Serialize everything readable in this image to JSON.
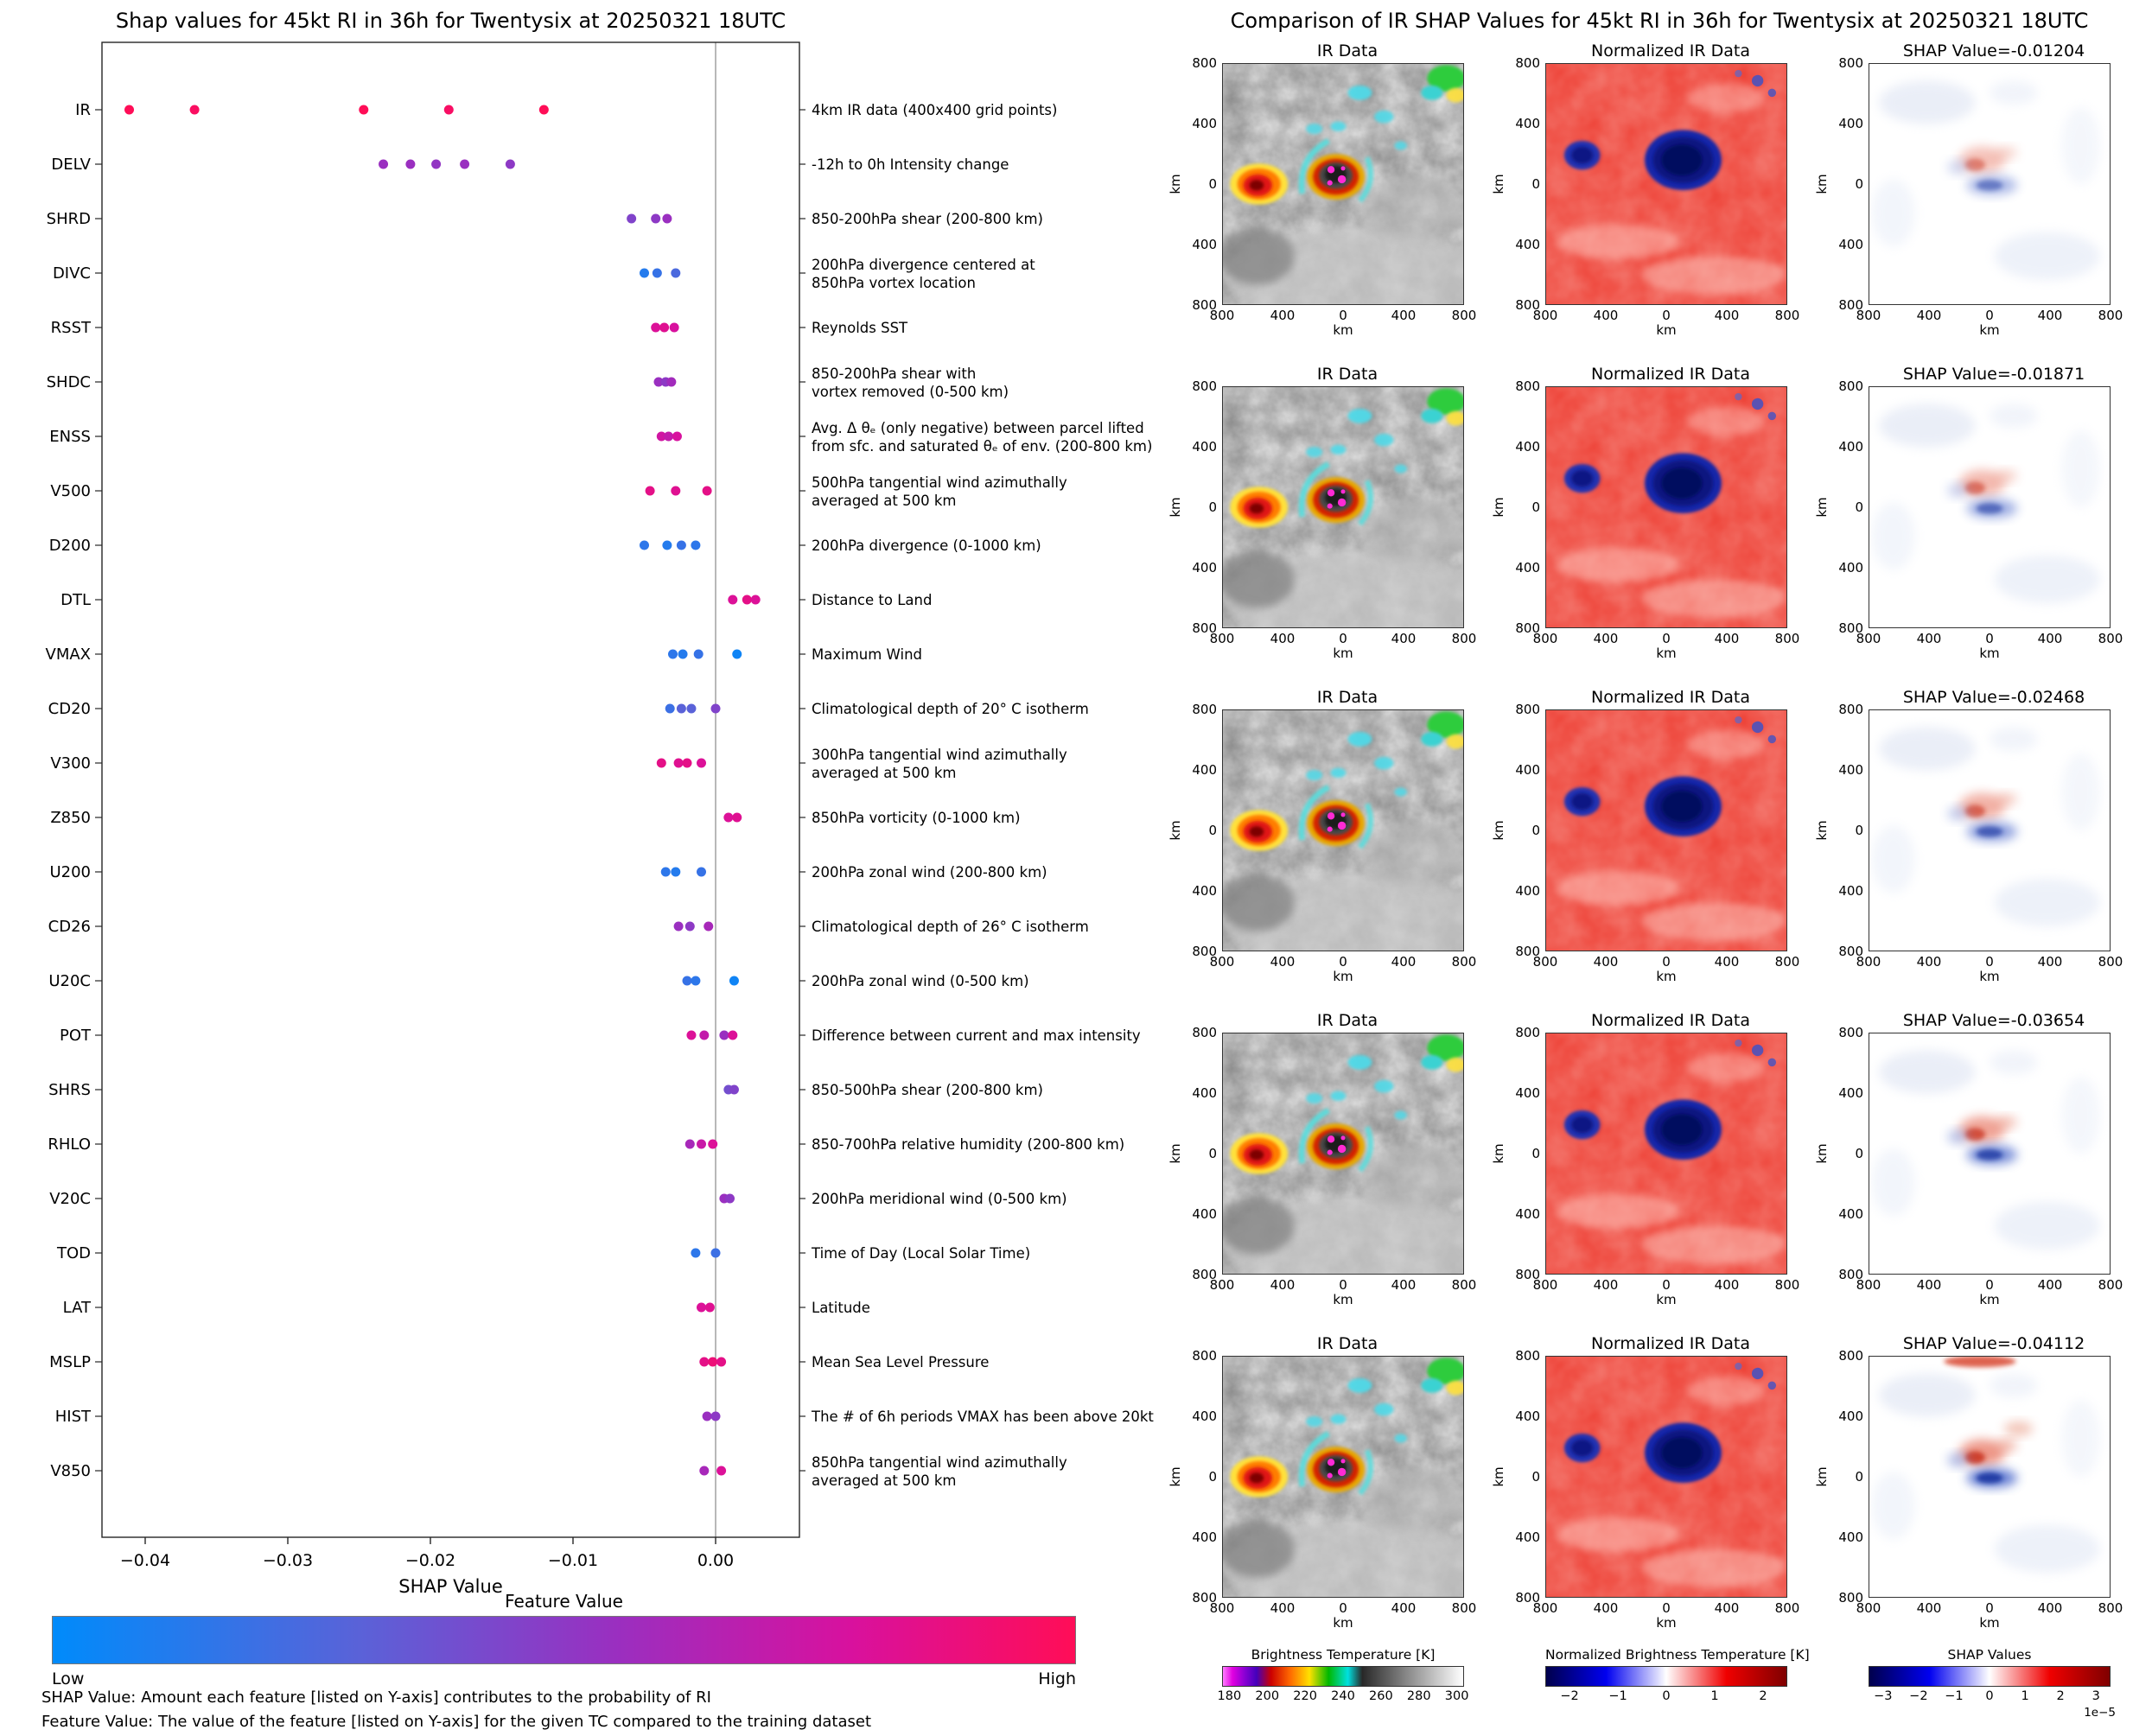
{
  "palette": {
    "feature_cmap_stops": [
      [
        0,
        "#008bfb"
      ],
      [
        0.3,
        "#5a62d8"
      ],
      [
        0.55,
        "#9a2fc0"
      ],
      [
        0.78,
        "#d8119e"
      ],
      [
        1,
        "#ff0d57"
      ]
    ],
    "seismic_stops": [
      [
        0,
        "#00004c"
      ],
      [
        25,
        "#0000f0"
      ],
      [
        50,
        "#ffffff"
      ],
      [
        75,
        "#f00000"
      ],
      [
        100,
        "#7f0000"
      ]
    ],
    "ir_bar_stops": [
      [
        0,
        "#ff7dff"
      ],
      [
        4,
        "#e000e0"
      ],
      [
        9,
        "#8a00d4"
      ],
      [
        14,
        "#4400bb"
      ],
      [
        20,
        "#cc0000"
      ],
      [
        28,
        "#ff6a00"
      ],
      [
        36,
        "#ffe100"
      ],
      [
        44,
        "#00b800"
      ],
      [
        52,
        "#00e0e0"
      ],
      [
        58,
        "#282828"
      ],
      [
        80,
        "#9a9a9a"
      ],
      [
        100,
        "#ffffff"
      ]
    ],
    "zero_line": "#888888",
    "axis": "#262626"
  },
  "left_panel": {
    "colorbar_title": "Feature Value",
    "colorbar_low": "Low",
    "colorbar_high": "High",
    "footnote_shap": "SHAP Value: Amount each feature [listed on Y-axis] contributes to the probability of RI",
    "footnote_feature": "Feature Value: The value of the feature [listed on Y-axis] for the given TC compared to the training dataset"
  },
  "chart_data": [
    {
      "type": "scatter",
      "variant": "shap-beeswarm",
      "title": "Shap values for 45kt RI in 36h for Twentysix at 20250321 18UTC",
      "xlabel": "SHAP Value",
      "xlim": [
        -0.0445,
        0.0059
      ],
      "x_ticks": [
        {
          "v": -0.04,
          "label": "−0.04"
        },
        {
          "v": -0.03,
          "label": "−0.03"
        },
        {
          "v": -0.02,
          "label": "−0.02"
        },
        {
          "v": -0.01,
          "label": "−0.01"
        },
        {
          "v": 0,
          "label": "0.00"
        }
      ],
      "color_meaning": {
        "low": "#008bfb",
        "high": "#ff0d57"
      },
      "features": [
        {
          "name": "IR",
          "desc": [
            "4km IR data (400x400 grid points)"
          ],
          "points": [
            [
              -0.04112,
              1
            ],
            [
              -0.03654,
              0.97
            ],
            [
              -0.02468,
              1
            ],
            [
              -0.01871,
              0.96
            ],
            [
              -0.01204,
              1
            ]
          ]
        },
        {
          "name": "DELV",
          "desc": [
            "-12h to 0h Intensity change"
          ],
          "points": [
            [
              -0.0233,
              0.55
            ],
            [
              -0.0214,
              0.55
            ],
            [
              -0.0196,
              0.52
            ],
            [
              -0.0176,
              0.55
            ],
            [
              -0.0144,
              0.5
            ]
          ]
        },
        {
          "name": "SHRD",
          "desc": [
            "850-200hPa shear (200-800 km)"
          ],
          "points": [
            [
              -0.0059,
              0.45
            ],
            [
              -0.0042,
              0.5
            ],
            [
              -0.0034,
              0.55
            ]
          ]
        },
        {
          "name": "DIVC",
          "desc": [
            "200hPa divergence centered at",
            "850hPa vortex location"
          ],
          "points": [
            [
              -0.005,
              0.12
            ],
            [
              -0.0041,
              0.18
            ],
            [
              -0.0028,
              0.25
            ]
          ]
        },
        {
          "name": "RSST",
          "desc": [
            "Reynolds SST"
          ],
          "points": [
            [
              -0.0042,
              0.8
            ],
            [
              -0.0036,
              0.82
            ],
            [
              -0.0029,
              0.78
            ]
          ]
        },
        {
          "name": "SHDC",
          "desc": [
            "850-200hPa shear with",
            "vortex removed (0-500 km)"
          ],
          "points": [
            [
              -0.004,
              0.55
            ],
            [
              -0.0035,
              0.5
            ],
            [
              -0.0031,
              0.58
            ]
          ]
        },
        {
          "name": "ENSS",
          "desc": [
            "Avg. Δ θₑ (only negative) between parcel lifted",
            "from sfc. and saturated θₑ of env. (200-800 km)"
          ],
          "points": [
            [
              -0.0038,
              0.75
            ],
            [
              -0.0033,
              0.7
            ],
            [
              -0.0027,
              0.78
            ]
          ]
        },
        {
          "name": "V500",
          "desc": [
            "500hPa tangential wind azimuthally",
            "averaged at 500 km"
          ],
          "points": [
            [
              -0.0046,
              0.85
            ],
            [
              -0.0028,
              0.82
            ],
            [
              -0.0006,
              0.85
            ]
          ]
        },
        {
          "name": "D200",
          "desc": [
            "200hPa divergence (0-1000 km)"
          ],
          "points": [
            [
              -0.005,
              0.15
            ],
            [
              -0.0034,
              0.12
            ],
            [
              -0.0024,
              0.18
            ],
            [
              -0.0014,
              0.15
            ]
          ]
        },
        {
          "name": "DTL",
          "desc": [
            "Distance to Land"
          ],
          "points": [
            [
              0.0012,
              0.8
            ],
            [
              0.0022,
              0.85
            ],
            [
              0.0028,
              0.8
            ]
          ]
        },
        {
          "name": "VMAX",
          "desc": [
            "Maximum Wind"
          ],
          "points": [
            [
              -0.003,
              0.15
            ],
            [
              -0.0023,
              0.12
            ],
            [
              -0.0012,
              0.18
            ],
            [
              0.0015,
              0.05
            ]
          ]
        },
        {
          "name": "CD20",
          "desc": [
            "Climatological depth of 20° C isotherm"
          ],
          "points": [
            [
              -0.0032,
              0.2
            ],
            [
              -0.0024,
              0.3
            ],
            [
              -0.0017,
              0.3
            ],
            [
              0,
              0.45
            ]
          ]
        },
        {
          "name": "V300",
          "desc": [
            "300hPa tangential wind azimuthally",
            "averaged at 500 km"
          ],
          "points": [
            [
              -0.0038,
              0.85
            ],
            [
              -0.0026,
              0.82
            ],
            [
              -0.002,
              0.85
            ],
            [
              -0.001,
              0.8
            ]
          ]
        },
        {
          "name": "Z850",
          "desc": [
            "850hPa vorticity (0-1000 km)"
          ],
          "points": [
            [
              0.0009,
              0.8
            ],
            [
              0.0015,
              0.82
            ]
          ]
        },
        {
          "name": "U200",
          "desc": [
            "200hPa zonal wind (200-800 km)"
          ],
          "points": [
            [
              -0.0035,
              0.15
            ],
            [
              -0.0028,
              0.12
            ],
            [
              -0.001,
              0.18
            ]
          ]
        },
        {
          "name": "CD26",
          "desc": [
            "Climatological depth of 26° C isotherm"
          ],
          "points": [
            [
              -0.0026,
              0.55
            ],
            [
              -0.0018,
              0.5
            ],
            [
              -0.0005,
              0.6
            ]
          ]
        },
        {
          "name": "U20C",
          "desc": [
            "200hPa zonal wind (0-500 km)"
          ],
          "points": [
            [
              -0.002,
              0.18
            ],
            [
              -0.0014,
              0.15
            ],
            [
              0.0013,
              0.05
            ]
          ]
        },
        {
          "name": "POT",
          "desc": [
            "Difference between current and max intensity"
          ],
          "points": [
            [
              -0.0017,
              0.8
            ],
            [
              -0.0008,
              0.7
            ],
            [
              0.0006,
              0.55
            ],
            [
              0.0012,
              0.8
            ]
          ]
        },
        {
          "name": "SHRS",
          "desc": [
            "850-500hPa shear (200-800 km)"
          ],
          "points": [
            [
              0.0009,
              0.4
            ],
            [
              0.0013,
              0.45
            ]
          ]
        },
        {
          "name": "RHLO",
          "desc": [
            "850-700hPa relative humidity (200-800 km)"
          ],
          "points": [
            [
              -0.0018,
              0.6
            ],
            [
              -0.001,
              0.72
            ],
            [
              -0.0002,
              0.8
            ]
          ]
        },
        {
          "name": "V20C",
          "desc": [
            "200hPa meridional wind (0-500 km)"
          ],
          "points": [
            [
              0.0006,
              0.55
            ],
            [
              0.001,
              0.5
            ]
          ]
        },
        {
          "name": "TOD",
          "desc": [
            "Time of Day (Local Solar Time)"
          ],
          "points": [
            [
              -0.0014,
              0.15
            ],
            [
              0,
              0.2
            ]
          ]
        },
        {
          "name": "LAT",
          "desc": [
            "Latitude"
          ],
          "points": [
            [
              -0.001,
              0.8
            ],
            [
              -0.0004,
              0.82
            ]
          ]
        },
        {
          "name": "MSLP",
          "desc": [
            "Mean Sea Level Pressure"
          ],
          "points": [
            [
              -0.0008,
              0.85
            ],
            [
              -0.0002,
              0.9
            ],
            [
              0.0004,
              0.85
            ]
          ]
        },
        {
          "name": "HIST",
          "desc": [
            "The # of 6h periods VMAX has been above 20kt"
          ],
          "points": [
            [
              -0.0006,
              0.55
            ],
            [
              0,
              0.5
            ]
          ]
        },
        {
          "name": "V850",
          "desc": [
            "850hPa tangential wind azimuthally",
            "averaged at 500 km"
          ],
          "points": [
            [
              -0.0008,
              0.6
            ],
            [
              0.0004,
              0.8
            ]
          ]
        }
      ]
    },
    {
      "type": "heatmap",
      "variant": "map-comparison-grid",
      "title": "Comparison of IR SHAP Values for 45kt RI in 36h for Twentysix at 20250321 18UTC",
      "columns": [
        "IR Data",
        "Normalized IR Data"
      ],
      "rows": [
        {
          "shap_title": "SHAP Value=-0.01204",
          "shap_value": -0.01204
        },
        {
          "shap_title": "SHAP Value=-0.01871",
          "shap_value": -0.01871
        },
        {
          "shap_title": "SHAP Value=-0.02468",
          "shap_value": -0.02468
        },
        {
          "shap_title": "SHAP Value=-0.03654",
          "shap_value": -0.03654
        },
        {
          "shap_title": "SHAP Value=-0.04112",
          "shap_value": -0.04112
        }
      ],
      "map_axis": {
        "label": "km",
        "ticks": [
          "800",
          "400",
          "0",
          "400",
          "800"
        ],
        "extent_km": [
          -800,
          800
        ]
      },
      "colorbars": [
        {
          "label": "Brightness Temperature [K]",
          "ticks": [
            "180",
            "200",
            "220",
            "240",
            "260",
            "280",
            "300"
          ],
          "cmap": "ir"
        },
        {
          "label": "Normalized Brightness Temperature [K]",
          "ticks": [
            "−2",
            "−1",
            "0",
            "1",
            "2"
          ],
          "cmap": "seismic"
        },
        {
          "label": "SHAP Values",
          "ticks": [
            "−3",
            "−2",
            "−1",
            "0",
            "1",
            "2",
            "3"
          ],
          "cmap": "seismic",
          "scale_note": "1e−5"
        }
      ]
    }
  ]
}
